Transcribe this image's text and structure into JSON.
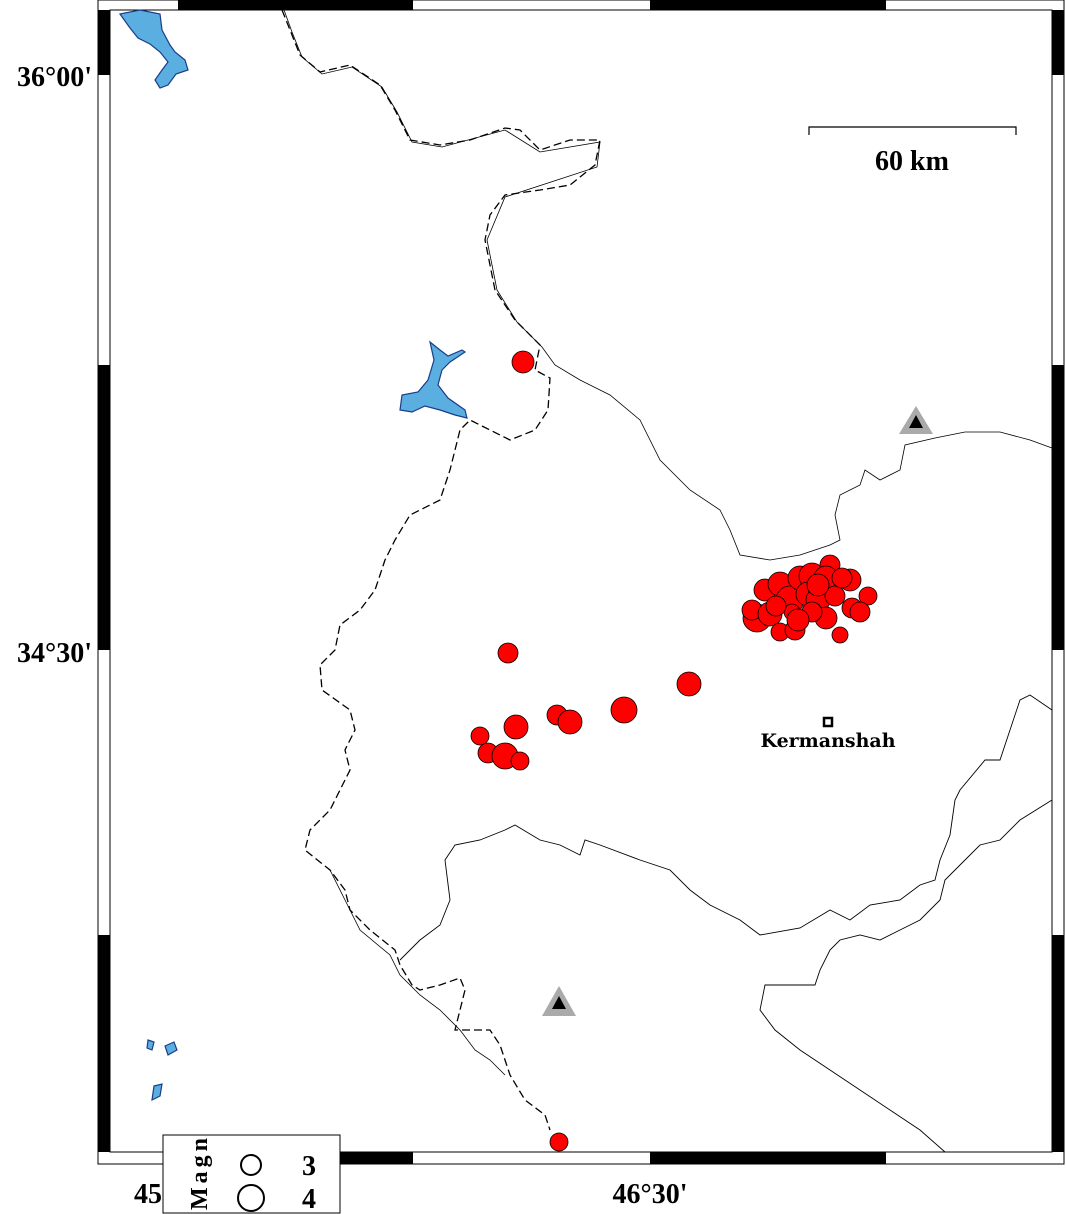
{
  "map": {
    "lat_labels": [
      "36°00'",
      "34°30'"
    ],
    "lon_labels": [
      "45",
      "46°30'"
    ],
    "scale_bar": {
      "label": "60 km"
    },
    "city": {
      "name": "Kermanshah"
    },
    "colors": {
      "events": "#ff0000",
      "water": "#5aaee0",
      "station": "#aaaaaa"
    },
    "legend": {
      "title": "Magnitude",
      "entries": [
        {
          "label": "3"
        },
        {
          "label": "4"
        }
      ]
    },
    "symbols": {
      "event": "red-circle",
      "station": "triangle",
      "city": "square"
    }
  }
}
